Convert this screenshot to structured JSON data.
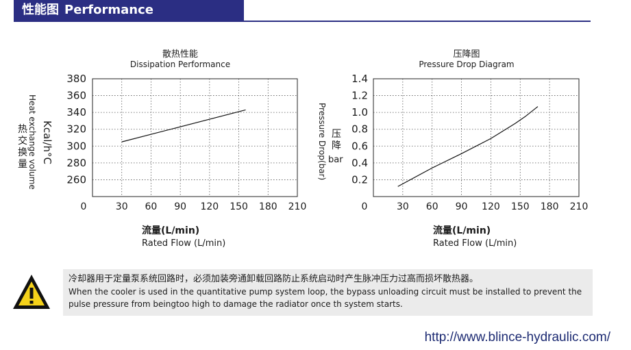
{
  "header": {
    "title_cn": "性能图",
    "title_en": "Performance"
  },
  "chart_data": [
    {
      "type": "line",
      "title_cn": "散热性能",
      "title_en": "Dissipation Performance",
      "xlabel_cn": "流量(L/min)",
      "xlabel_en": "Rated Flow (L/min)",
      "ylabel_cn": "热交换量",
      "ylabel_en": "Heat exchange volume",
      "ylabel_unit": "Kcal/h°C",
      "xlim": [
        0,
        210
      ],
      "ylim": [
        240,
        380
      ],
      "x_ticks": [
        "0",
        "30",
        "60",
        "90",
        "120",
        "150",
        "180",
        "210"
      ],
      "y_ticks": [
        "260",
        "280",
        "300",
        "320",
        "340",
        "360",
        "380"
      ],
      "grid": true,
      "series": [
        {
          "x": [
            30,
            157
          ],
          "y": [
            305,
            343
          ]
        }
      ]
    },
    {
      "type": "line",
      "title_cn": "压降图",
      "title_en": "Pressure Drop Diagram",
      "xlabel_cn": "流量(L/min)",
      "xlabel_en": "Rated Flow (L/min)",
      "ylabel_cn": "压降",
      "ylabel_en": "Pressure Drop(bar)",
      "ylabel_unit": "bar",
      "xlim": [
        0,
        210
      ],
      "ylim": [
        0,
        1.4
      ],
      "x_ticks": [
        "0",
        "30",
        "60",
        "90",
        "120",
        "150",
        "180",
        "210"
      ],
      "y_ticks": [
        "0.2",
        "0.4",
        "0.6",
        "0.8",
        "1.0",
        "1.2",
        "1.4"
      ],
      "grid": true,
      "series": [
        {
          "x": [
            25,
            60,
            90,
            120,
            145,
            155,
            168
          ],
          "y": [
            0.12,
            0.34,
            0.51,
            0.69,
            0.87,
            0.95,
            1.07
          ]
        }
      ]
    }
  ],
  "warning": {
    "icon": "warning-triangle-icon",
    "text_cn": "冷却器用于定量泵系统回路时，必须加装旁通卸载回路防止系统启动时产生脉冲压力过高而损坏散热器。",
    "text_en": "When the cooler is used in the quantitative pump system loop, the bypass unloading circuit must be installed to prevent the pulse pressure from beingtoo high to damage the radiator once th system starts."
  },
  "footer": {
    "url": "http://www.blince-hydraulic.com/"
  },
  "colors": {
    "brand": "#2b2e83",
    "warning_bg": "#ebebeb",
    "icon_yellow": "#f5d21a"
  }
}
